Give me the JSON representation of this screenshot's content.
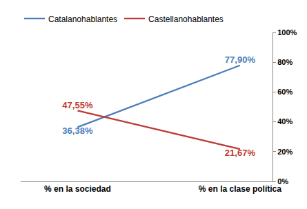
{
  "chart_data": {
    "type": "line",
    "categories": [
      "% en la sociedad",
      "% en la clase política"
    ],
    "series": [
      {
        "name": "Catalanohablantes",
        "color": "#4a7ebb",
        "values": [
          36.38,
          77.9
        ],
        "value_labels": [
          "36,38%",
          "77,90%"
        ]
      },
      {
        "name": "Castellanohablantes",
        "color": "#be3a34",
        "values": [
          47.55,
          21.67
        ],
        "value_labels": [
          "47,55%",
          "21,67%"
        ]
      }
    ],
    "ylim": [
      0,
      100
    ],
    "yticks": [
      {
        "value": 0,
        "label": "0%"
      },
      {
        "value": 20,
        "label": "20%"
      },
      {
        "value": 40,
        "label": "40%"
      },
      {
        "value": 60,
        "label": "60%"
      },
      {
        "value": 80,
        "label": "80%"
      },
      {
        "value": 100,
        "label": "100%"
      }
    ],
    "grid": false,
    "legend": "top",
    "data_labels": true
  }
}
